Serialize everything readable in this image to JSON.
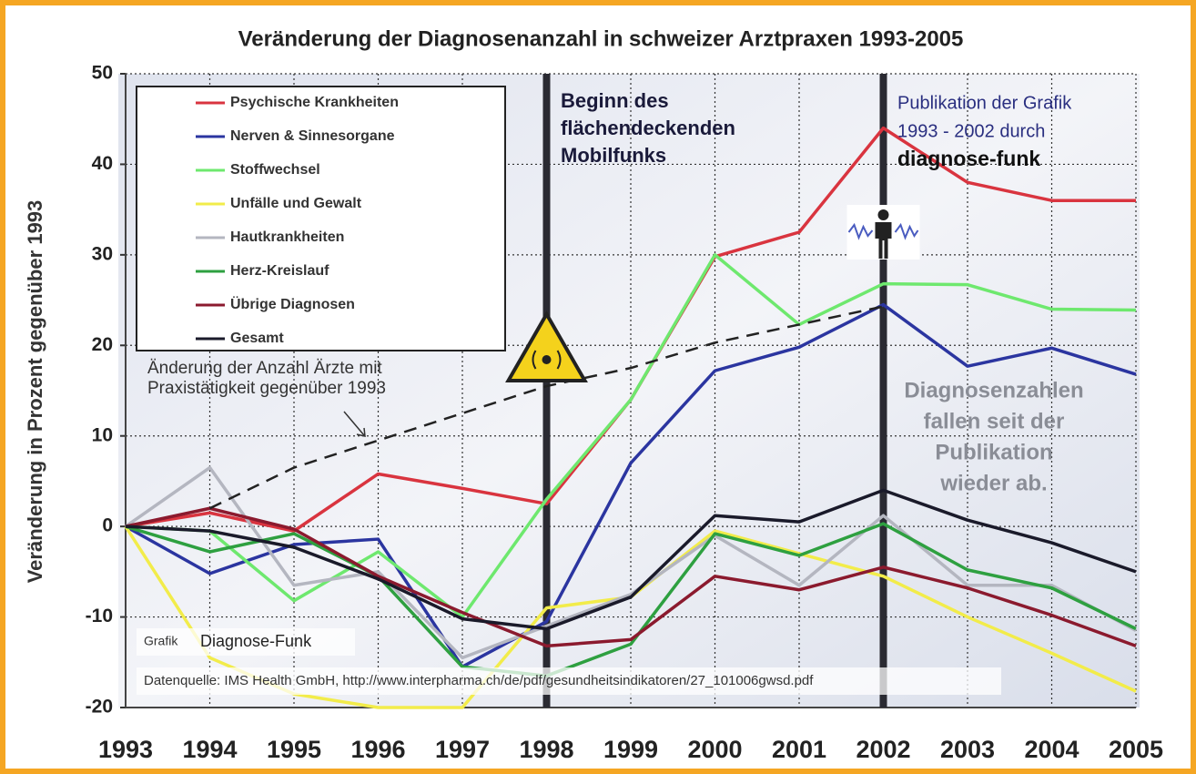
{
  "chart_data": {
    "type": "line",
    "title": "Veränderung der Diagnosenanzahl in schweizer Arztpraxen 1993-2005",
    "y_label": "Veränderung in Prozent gegenüber 1993",
    "x": [
      1993,
      1994,
      1995,
      1996,
      1997,
      1998,
      1999,
      2000,
      2001,
      2002,
      2003,
      2004,
      2005
    ],
    "xlim": [
      1993,
      2005
    ],
    "xticks": [
      1993,
      1994,
      1995,
      1996,
      1997,
      1998,
      1999,
      2000,
      2001,
      2002,
      2003,
      2004,
      2005
    ],
    "ylim": [
      -20,
      50
    ],
    "yticks": [
      -20,
      -10,
      0,
      10,
      20,
      30,
      40,
      50
    ],
    "grid": true,
    "legend": "upper left",
    "series": [
      {
        "name": "Psychische Krankheiten",
        "color": "#d9343f",
        "values": [
          0,
          1.5,
          -0.5,
          5.8,
          4.2,
          2.5,
          14,
          29.8,
          32.5,
          44,
          38,
          36,
          36
        ]
      },
      {
        "name": "Nerven & Sinnesorgane",
        "color": "#2b35a0",
        "values": [
          0,
          -5.2,
          -2,
          -1.4,
          -15.5,
          -10.5,
          7,
          17.2,
          19.8,
          24.5,
          17.7,
          19.7,
          16.8
        ]
      },
      {
        "name": "Stoffwechsel",
        "color": "#6ee86e",
        "values": [
          0,
          -0.5,
          -8.2,
          -2.8,
          -10,
          3,
          14,
          30,
          22.3,
          26.8,
          26.7,
          24,
          23.9
        ]
      },
      {
        "name": "Unfälle und Gewalt",
        "color": "#f2ec4a",
        "values": [
          0,
          -14.5,
          -18.5,
          -20,
          -20,
          -9,
          -7.8,
          -0.5,
          -3,
          -5.5,
          -10,
          -14,
          -18.2
        ]
      },
      {
        "name": "Hautkrankheiten",
        "color": "#b4b6c0",
        "values": [
          0,
          6.5,
          -6.5,
          -5,
          -14.5,
          -11,
          -7.5,
          -1,
          -6.5,
          1.2,
          -6.5,
          -6.5,
          -11.5
        ]
      },
      {
        "name": "Herz-Kreislauf",
        "color": "#2ea040",
        "values": [
          0,
          -2.8,
          -0.8,
          -5.5,
          -15.5,
          -16.5,
          -13,
          -0.8,
          -3.2,
          0.3,
          -4.8,
          -6.8,
          -11.3
        ]
      },
      {
        "name": "Übrige Diagnosen",
        "color": "#8b1a2e",
        "values": [
          0,
          2,
          -0.3,
          -5.5,
          -9.5,
          -13.2,
          -12.5,
          -5.5,
          -7,
          -4.5,
          -6.8,
          -9.8,
          -13.2
        ]
      },
      {
        "name": "Gesamt",
        "color": "#1a1a2a",
        "values": [
          0,
          -0.5,
          -2.3,
          -5.8,
          -10.2,
          -11.3,
          -7.8,
          1.2,
          0.5,
          4,
          0.7,
          -1.8,
          -5
        ]
      },
      {
        "name": "Änderung der Anzahl Ärzte mit Praxistätigkeit gegenüber 1993",
        "color": "#222222",
        "dashed": true,
        "in_legend": false,
        "values": [
          null,
          2,
          6.5,
          9.5,
          12.5,
          15.5,
          17.5,
          20.3,
          22.3,
          24.3,
          null,
          null,
          null
        ]
      }
    ],
    "markers_x": [
      1998,
      2002
    ],
    "annotations": {
      "mobilfunk": [
        "Beginn des",
        "flächendeckenden",
        "Mobilfunks"
      ],
      "publikation": [
        "Publikation der Grafik",
        "1993 - 2002 durch",
        "diagnose-funk"
      ],
      "abfall": [
        "Diagnosenzahlen",
        "fallen seit der",
        "Publikation",
        "wieder ab."
      ],
      "grafik": "Grafik",
      "grafik_name": "Diagnose-Funk",
      "quelle": "Datenquelle: IMS Health GmbH, http://www.interpharma.ch/de/pdf/gesundheitsindikatoren/27_101006gwsd.pdf"
    }
  }
}
